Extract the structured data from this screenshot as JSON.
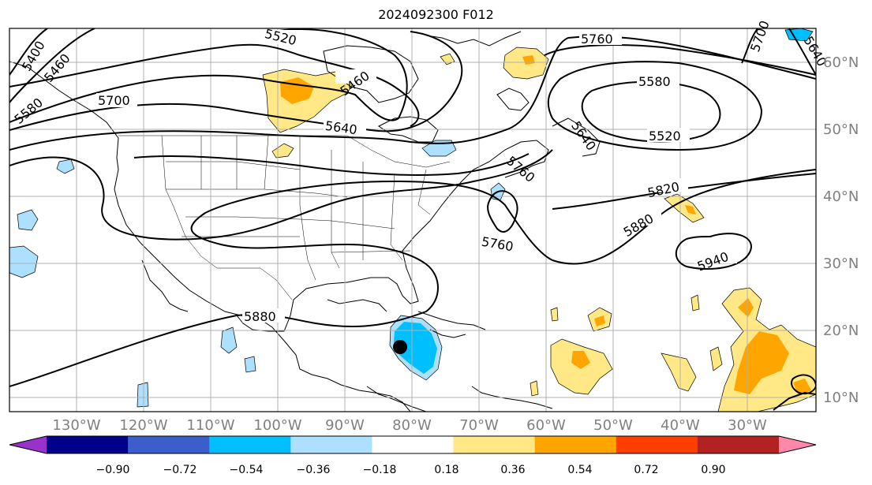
{
  "title": "2024092300 F012",
  "map": {
    "projection": "cylindrical",
    "lon_range": [
      -140,
      -20
    ],
    "lat_range": [
      8,
      65
    ],
    "lon_tick_labels": [
      "130°W",
      "120°W",
      "110°W",
      "100°W",
      "90°W",
      "80°W",
      "70°W",
      "60°W",
      "50°W",
      "40°W",
      "30°W"
    ],
    "lat_tick_labels": [
      "60°N",
      "50°N",
      "40°N",
      "30°N",
      "20°N",
      "10°N"
    ],
    "contour_labels": [
      "5520",
      "5460",
      "5400",
      "5580",
      "5700",
      "5460",
      "5640",
      "5760",
      "5580",
      "5520",
      "5640",
      "5760",
      "5820",
      "5880",
      "5760",
      "5940",
      "5880",
      "5640",
      "5700"
    ],
    "marker": "storm-center-dot",
    "colors": {
      "line": "#000000",
      "grid": "#b0b0b0",
      "tick_text": "#808080"
    }
  },
  "colorbar": {
    "tick_labels": [
      "−0.90",
      "−0.72",
      "−0.54",
      "−0.36",
      "−0.18",
      "0.18",
      "0.36",
      "0.54",
      "0.72",
      "0.90"
    ],
    "colors": [
      "#9932CC",
      "#00008B",
      "#3A5FCD",
      "#00BFFF",
      "#ADDFFF",
      "#FFFFFF",
      "#FFE885",
      "#FFA500",
      "#FF3F00",
      "#B22222",
      "#FF88AA"
    ]
  }
}
